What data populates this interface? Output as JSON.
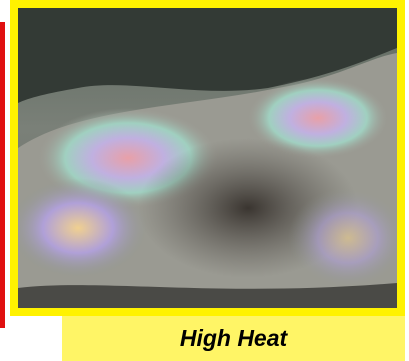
{
  "caption": "High Heat"
}
